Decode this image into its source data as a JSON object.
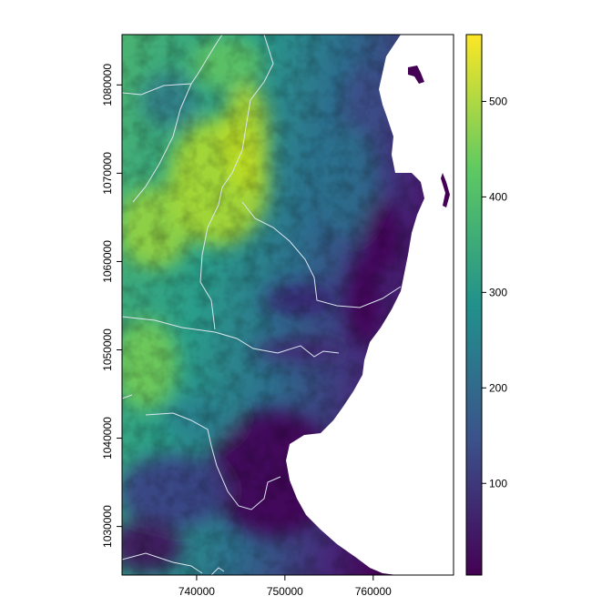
{
  "chart_data": {
    "type": "heatmap",
    "title": "",
    "xlabel": "",
    "ylabel": "",
    "xlim": [
      731550,
      769100
    ],
    "ylim": [
      1024500,
      1085700
    ],
    "x_ticks": [
      "740000",
      "750000",
      "760000"
    ],
    "x_tick_values": [
      740000,
      750000,
      760000
    ],
    "y_ticks": [
      "1030000",
      "1040000",
      "1050000",
      "1060000",
      "1070000",
      "1080000"
    ],
    "y_tick_values": [
      1030000,
      1040000,
      1050000,
      1060000,
      1070000,
      1080000
    ],
    "legend": {
      "placement": "right",
      "type": "continuous colorbar",
      "range": [
        4,
        570
      ],
      "ticks": [
        "100",
        "200",
        "300",
        "400",
        "500"
      ],
      "tick_values": [
        100,
        200,
        300,
        400,
        500
      ],
      "palette": [
        "#440154",
        "#3b528b",
        "#21918c",
        "#5ec962",
        "#fde725"
      ]
    },
    "na_color": "#ffffff",
    "overlay_line_color": "#dbe6f0"
  }
}
